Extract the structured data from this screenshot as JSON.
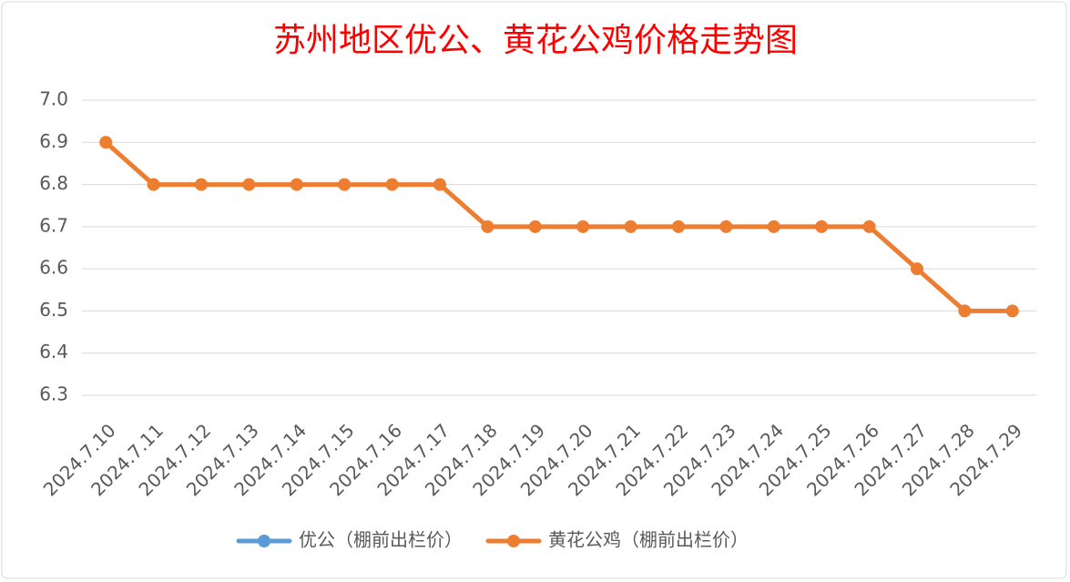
{
  "chart_data": {
    "type": "line",
    "title": "苏州地区优公、黄花公鸡价格走势图",
    "categories": [
      "2024.7.10",
      "2024.7.11",
      "2024.7.12",
      "2024.7.13",
      "2024.7.14",
      "2024.7.15",
      "2024.7.16",
      "2024.7.17",
      "2024.7.18",
      "2024.7.19",
      "2024.7.20",
      "2024.7.21",
      "2024.7.22",
      "2024.7.23",
      "2024.7.24",
      "2024.7.25",
      "2024.7.26",
      "2024.7.27",
      "2024.7.28",
      "2024.7.29"
    ],
    "series": [
      {
        "name": "优公（棚前出栏价）",
        "color": "#5b9bd5",
        "values": [
          null,
          null,
          null,
          null,
          null,
          null,
          null,
          null,
          null,
          null,
          null,
          null,
          null,
          null,
          null,
          null,
          null,
          null,
          null,
          null
        ]
      },
      {
        "name": "黄花公鸡（棚前出栏价）",
        "color": "#ed7d31",
        "values": [
          6.9,
          6.8,
          6.8,
          6.8,
          6.8,
          6.8,
          6.8,
          6.8,
          6.7,
          6.7,
          6.7,
          6.7,
          6.7,
          6.7,
          6.7,
          6.7,
          6.7,
          6.6,
          6.5,
          6.5
        ]
      }
    ],
    "ylim": [
      6.3,
      7.0
    ],
    "yticks": [
      6.3,
      6.4,
      6.5,
      6.6,
      6.7,
      6.8,
      6.9,
      {
        "value": 7.0,
        "label": "7.0"
      }
    ],
    "grid": true,
    "legend": "bottom"
  }
}
